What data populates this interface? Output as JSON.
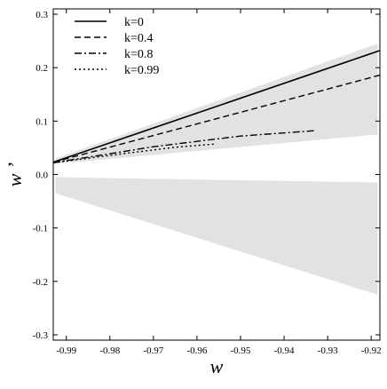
{
  "chart_data": {
    "type": "line",
    "xlabel": "w",
    "ylabel": "w ’",
    "xlim": [
      -0.993,
      -0.918
    ],
    "ylim": [
      -0.31,
      0.31
    ],
    "x_ticks": [
      -0.99,
      -0.98,
      -0.97,
      -0.96,
      -0.95,
      -0.94,
      -0.93,
      -0.92
    ],
    "y_ticks": [
      -0.3,
      -0.2,
      -0.1,
      0.0,
      0.1,
      0.2,
      0.3
    ],
    "grid": false,
    "legend_position": "top-left",
    "shaded_regions": [
      {
        "x": [
          -0.9925,
          -0.9185
        ],
        "upper": [
          0.03,
          0.245
        ],
        "lower": [
          0.02,
          0.075
        ]
      },
      {
        "x": [
          -0.9925,
          -0.9185
        ],
        "upper": [
          -0.005,
          -0.015
        ],
        "lower": [
          -0.035,
          -0.225
        ]
      }
    ],
    "series": [
      {
        "name": "k=0",
        "style": "solid",
        "x": [
          -0.993,
          -0.918
        ],
        "y": [
          0.023,
          0.232
        ]
      },
      {
        "name": "k=0.4",
        "style": "dashed",
        "x": [
          -0.993,
          -0.918
        ],
        "y": [
          0.023,
          0.186
        ]
      },
      {
        "name": "k=0.8",
        "style": "dashdot",
        "x": [
          -0.993,
          -0.97,
          -0.95,
          -0.933
        ],
        "y": [
          0.022,
          0.052,
          0.072,
          0.082
        ]
      },
      {
        "name": "k=0.99",
        "style": "dotted",
        "x": [
          -0.993,
          -0.975,
          -0.965,
          -0.956
        ],
        "y": [
          0.022,
          0.041,
          0.051,
          0.057
        ]
      }
    ]
  }
}
